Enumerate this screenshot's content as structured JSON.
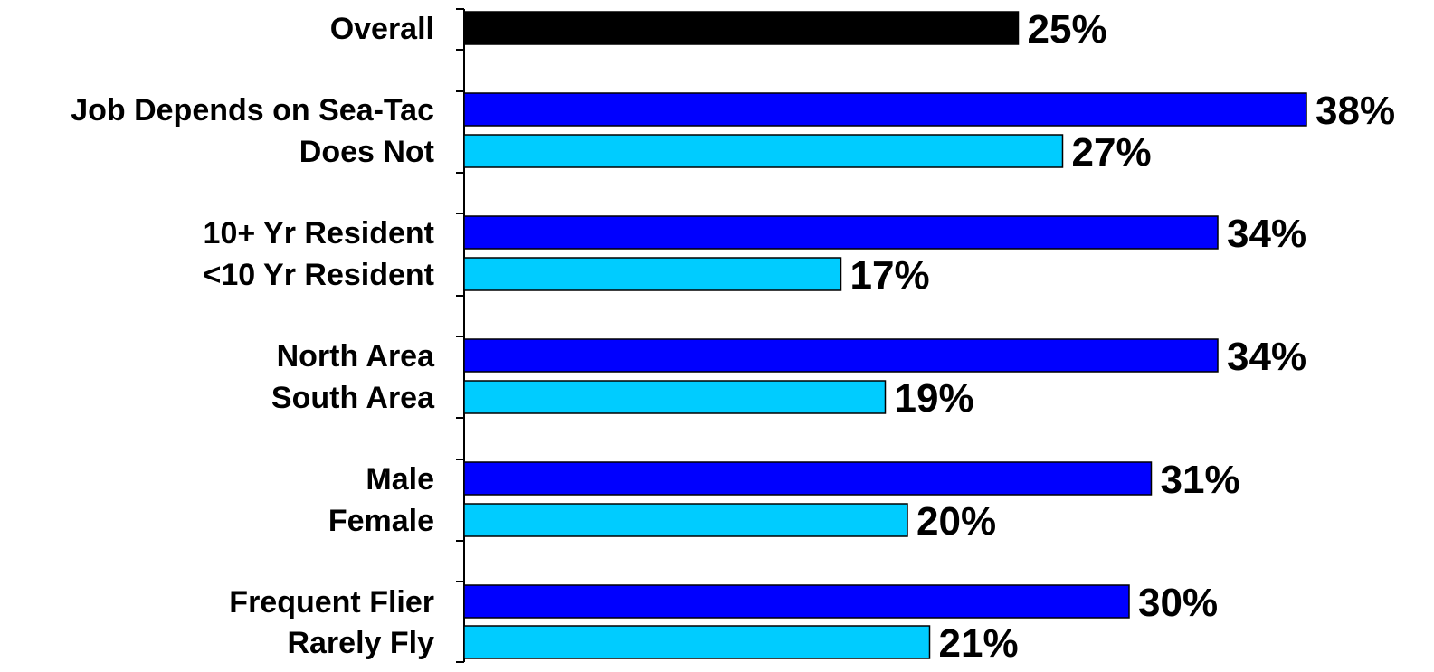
{
  "chart_data": {
    "type": "bar",
    "orientation": "horizontal",
    "xlim": [
      0,
      38
    ],
    "grid": false,
    "legend": "none",
    "colors": {
      "overall": "#000000",
      "primary": "#0000FF",
      "secondary": "#00CCFF",
      "stroke": "#000000"
    },
    "bars": [
      {
        "label": "Overall",
        "value": 25,
        "value_label": "25%",
        "color_key": "overall"
      },
      {
        "label": "Job Depends on Sea-Tac",
        "value": 38,
        "value_label": "38%",
        "color_key": "primary"
      },
      {
        "label": "Does Not",
        "value": 27,
        "value_label": "27%",
        "color_key": "secondary"
      },
      {
        "label": "10+ Yr Resident",
        "value": 34,
        "value_label": "34%",
        "color_key": "primary"
      },
      {
        "label": "<10 Yr Resident",
        "value": 17,
        "value_label": "17%",
        "color_key": "secondary"
      },
      {
        "label": "North Area",
        "value": 34,
        "value_label": "34%",
        "color_key": "primary"
      },
      {
        "label": "South Area",
        "value": 19,
        "value_label": "19%",
        "color_key": "secondary"
      },
      {
        "label": "Male",
        "value": 31,
        "value_label": "31%",
        "color_key": "primary"
      },
      {
        "label": "Female",
        "value": 20,
        "value_label": "20%",
        "color_key": "secondary"
      },
      {
        "label": "Frequent Flier",
        "value": 30,
        "value_label": "30%",
        "color_key": "primary"
      },
      {
        "label": "Rarely Fly",
        "value": 21,
        "value_label": "21%",
        "color_key": "secondary"
      }
    ]
  }
}
